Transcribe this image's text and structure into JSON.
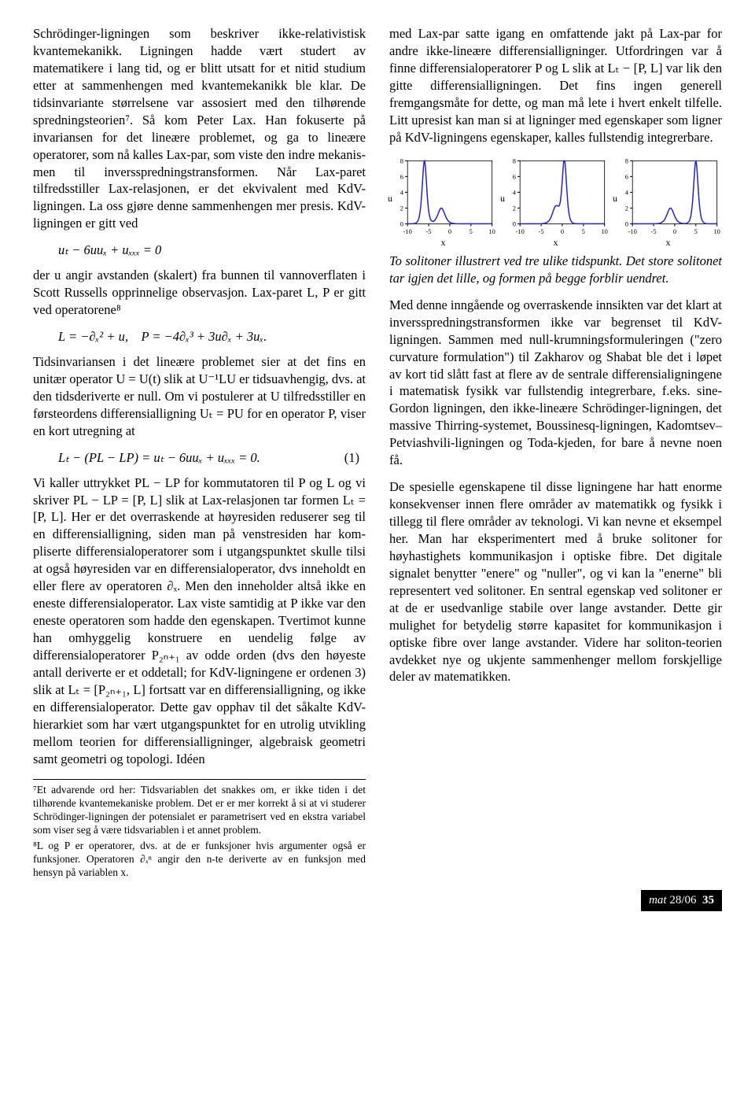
{
  "left": {
    "para1": "Schrödinger-ligningen som beskriver ikke-relativistisk kvantemekanikk. Ligningen hadde vært studert av matematikere i lang tid, og er blitt utsatt for et nitid studium etter at sammenhengen med kvante­mekanikk ble klar. De tidsinvariante størrelsene var assosiert med den tilhørende spredningsteorien⁷. Så kom Peter Lax. Han fokuserte på invariansen for det lineære problemet, og ga to lineære operatorer, som nå kalles Lax-par, som viste den indre mekanis­men til inversspredningstransformen. Når Lax-paret tilfredsstiller Lax-relasjonen, er det ekvivalent med KdV-ligningen. La oss gjøre denne sammenhengen mer presis. KdV-ligningen er gitt ved",
    "eq1": "uₜ − 6uuₓ + uₓₓₓ = 0",
    "para2": "der u angir avstanden (skalert) fra bunnen til vann­overflaten i Scott Russells opprinnelige observasjon. Lax-paret L, P er gitt ved operatorene⁸",
    "eq2": "L = −∂ₓ² + u, P = −4∂ₓ³ + 3u∂ₓ + 3uₓ.",
    "para3": "Tidsinvariansen i det lineære problemet sier at det fins en unitær operator U = U(t) slik at U⁻¹LU er tidsuavhengig, dvs. at den tidsderiverte er null. Om vi postulerer at U tilfredsstiller en førsteordens dif­ferensialligning Uₜ = PU for en operator P, viser en kort utregning at",
    "eq3": "Lₜ − (PL − LP) = uₜ − 6uuₓ + uₓₓₓ = 0.",
    "eq3num": "(1)",
    "para4": "Vi kaller uttrykket PL − LP for kommutatoren til P og L og vi skriver PL − LP = [P, L] slik at Lax-relasjonen tar formen Lₜ = [P, L]. Her er det overraskende at høyresiden reduserer seg til en dif­ferensialligning, siden man på venstresiden har kom­pliserte differensialoperatorer som i utgangspunktet skulle tilsi at også høyresiden var en differensialop­erator, dvs inneholdt en eller flere av operatoren ∂ₓ. Men den inneholder altså ikke en eneste differensial­operator. Lax viste samtidig at P ikke var den en­este operatoren som hadde den egenskapen. Tver­timot kunne han omhyggelig konstruere en uendelig følge av differensialoperatorer P₂ₙ₊₁ av odde orden (dvs den høyeste antall deriverte er et oddetall; for KdV-ligningene er ordenen 3) slik at Lₜ = [P₂ₙ₊₁, L] fortsatt var en differensialligning, og ikke en differen­sialoperator. Dette gav opphav til det såkalte KdV-hierarkiet som har vært utgangspunktet for en utrolig utvikling mellom teorien for differensialligninger, al­gebraisk geometri samt geometri og topologi. Idéen"
  },
  "right": {
    "para1": "med Lax-par satte igang en omfattende jakt på Lax-par for andre ikke-lineære differensialligninger. Ut­fordringen var å finne differensialoperatorer P og L slik at Lₜ − [P, L] var lik den gitte differensiallignin­gen. Det fins ingen generell fremgangsmåte for dette, og man må lete i hvert enkelt tilfelle. Litt upresist kan man si at ligninger med egenskaper som ligner på KdV-ligningens egenskaper, kalles fullstendig in­tegrerbare.",
    "caption": "To solitoner illustrert ved tre ulike tidspunkt. Det store solitonet tar igjen det lille, og formen på begge forblir uendret.",
    "para2": "Med denne inngående og overraskende innsikten var det klart at inversspredningstransformen ikke var begrenset til KdV-ligningen. Sammen med null-krumningsformuleringen (\"zero curvature for­mulation\") til Zakharov og Shabat ble det i løpet av kort tid slått fast at flere av de sen­trale differensialigningene i matematisk fysikk var fullstendig integrerbare, f.eks. sine-Gordon lignin­gen, den ikke-lineære Schrödinger-ligningen, det massive Thirring-systemet, Boussinesq-ligningen, Kadomtsev–Petviashvili-ligningen og Toda-kjeden, for bare å nevne noen få.",
    "para3": "De spesielle egenskapene til disse ligningene har hatt enorme konsekvenser innen flere områder av matem­atikk og fysikk i tillegg til flere områder av teknologi. Vi kan nevne et eksempel her. Man har eksper­imentert med å bruke solitoner for høyhastighets kommunikasjon i optiske fibre. Det digitale signalet benytter \"enere\" og \"nuller\", og vi kan la \"enerne\" bli representert ved solitoner. En sentral egenskap ved solitoner er at de er usedvanlige stabile over lange avstander. Dette gir mulighet for betydelig større ka­pasitet for kommunikasjon i optiske fibre over lange avstander. Videre har soliton-teorien avdekket nye og ukjente sammenhenger mellom forskjellige deler av matematikken."
  },
  "charts": {
    "type": "line",
    "line_color": "#2020d0",
    "axis_color": "#000000",
    "grid_color": "#d0d0d0",
    "background": "#ffffff",
    "xlim": [
      -10,
      10
    ],
    "ylim": [
      0,
      8
    ],
    "xticks": [
      -10,
      -5,
      0,
      5,
      10
    ],
    "yticks": [
      0,
      2,
      4,
      6,
      8
    ],
    "tick_fontsize": 8,
    "label_fontsize": 12,
    "xlabel": "x",
    "ylabel": "u",
    "panels": [
      {
        "big_peak_x": -6,
        "big_peak_h": 8,
        "small_peak_x": -2,
        "small_peak_h": 2
      },
      {
        "big_peak_x": 0.5,
        "big_peak_h": 8,
        "small_peak_x": -1.5,
        "small_peak_h": 2.2
      },
      {
        "big_peak_x": 5,
        "big_peak_h": 8,
        "small_peak_x": -1,
        "small_peak_h": 2
      }
    ]
  },
  "footnotes": {
    "f7": "⁷Et advarende ord her: Tidsvariablen det snakkes om, er ikke tiden i det tilhørende kvantemekaniske problem. Det er er mer korrekt å si at vi studerer Schrödinger-ligningen der potensialet er parametrisert ved en ekstra variabel som viser seg å være tidsvariablen i et annet problem.",
    "f8": "⁸L og P er operatorer, dvs. at de er funksjoner hvis ar­gumenter også er funksjoner. Operatoren ∂ₓⁿ angir den n-te deriverte av en funksjon med hensyn på variablen x."
  },
  "footer": {
    "logo": "mat",
    "issue": "28/06",
    "page": "35"
  }
}
